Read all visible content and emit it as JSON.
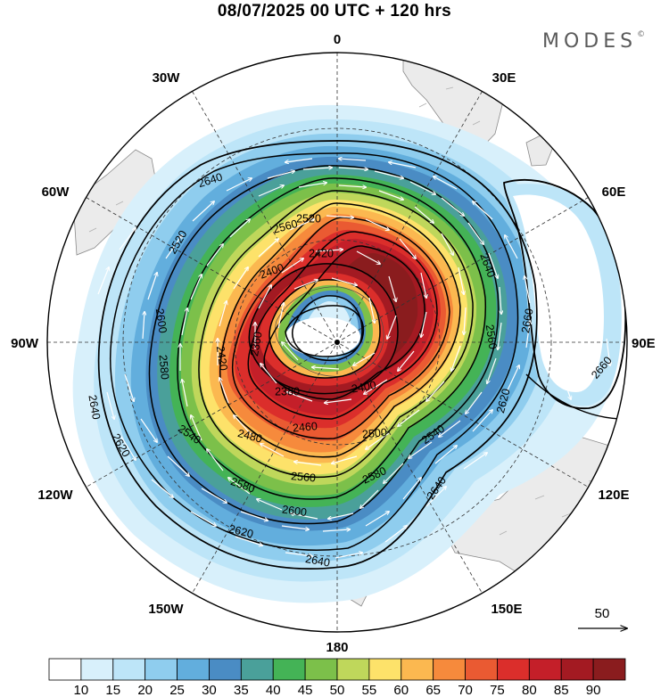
{
  "title": "08/07/2025  00 UTC  + 120 hrs",
  "logo": {
    "text": "MODES",
    "mark": "©"
  },
  "longitude_labels": {
    "lon_0": "0",
    "lon_30e": "30E",
    "lon_60e": "60E",
    "lon_90e": "90E",
    "lon_120e": "120E",
    "lon_150e": "150E",
    "lon_180": "180",
    "lon_150w": "150W",
    "lon_120w": "120W",
    "lon_90w": "90W",
    "lon_60w": "60W",
    "lon_30w": "30W"
  },
  "reference_vector": {
    "label": "50"
  },
  "colorbar": {
    "colors": [
      "#ffffff",
      "#d8f0fb",
      "#bde5f8",
      "#8fcdee",
      "#62aedd",
      "#4a8cc4",
      "#4aa09a",
      "#44b356",
      "#7cc04a",
      "#bfd75b",
      "#fde26a",
      "#fbb850",
      "#f68a3c",
      "#ea5a32",
      "#db2e2b",
      "#c41f29",
      "#a31a22",
      "#8a1c1e"
    ],
    "labels": [
      "10",
      "15",
      "20",
      "25",
      "30",
      "35",
      "40",
      "45",
      "50",
      "55",
      "60",
      "65",
      "70",
      "75",
      "80",
      "85",
      "90"
    ]
  },
  "contour_labels": [
    "2640",
    "2620",
    "2600",
    "2580",
    "2560",
    "2540",
    "2520",
    "2500",
    "2480",
    "2460",
    "2440",
    "2420",
    "2400",
    "2380",
    "2360",
    "2660"
  ],
  "contours": [
    {
      "label": "2660",
      "text_loc": "east-upper"
    },
    {
      "label": "2660",
      "text_loc": "east-lower"
    },
    {
      "label": "2640",
      "text_loc": "north-west"
    },
    {
      "label": "2640",
      "text_loc": "west"
    },
    {
      "label": "2640",
      "text_loc": "south"
    },
    {
      "label": "2640",
      "text_loc": "east"
    },
    {
      "label": "2640",
      "text_loc": "south-east"
    },
    {
      "label": "2620",
      "text_loc": "west"
    },
    {
      "label": "2620",
      "text_loc": "south"
    },
    {
      "label": "2620",
      "text_loc": "east"
    },
    {
      "label": "2600",
      "text_loc": "south"
    },
    {
      "label": "2600",
      "text_loc": "west"
    },
    {
      "label": "2580",
      "text_loc": "west"
    },
    {
      "label": "2580",
      "text_loc": "south"
    },
    {
      "label": "2580",
      "text_loc": "south-east"
    },
    {
      "label": "2560",
      "text_loc": "south"
    },
    {
      "label": "2560",
      "text_loc": "east"
    },
    {
      "label": "2560",
      "text_loc": "north"
    },
    {
      "label": "2540",
      "text_loc": "south-west"
    },
    {
      "label": "2540",
      "text_loc": "south-east"
    },
    {
      "label": "2520",
      "text_loc": "north-west"
    },
    {
      "label": "2520",
      "text_loc": "north"
    },
    {
      "label": "2500",
      "text_loc": "south"
    },
    {
      "label": "2480",
      "text_loc": "south"
    },
    {
      "label": "2460",
      "text_loc": "south"
    },
    {
      "label": "2420",
      "text_loc": "north"
    },
    {
      "label": "2420",
      "text_loc": "west"
    },
    {
      "label": "2400",
      "text_loc": "north"
    },
    {
      "label": "2400",
      "text_loc": "south"
    },
    {
      "label": "2380",
      "text_loc": "south"
    },
    {
      "label": "2360",
      "text_loc": "inner"
    }
  ]
}
